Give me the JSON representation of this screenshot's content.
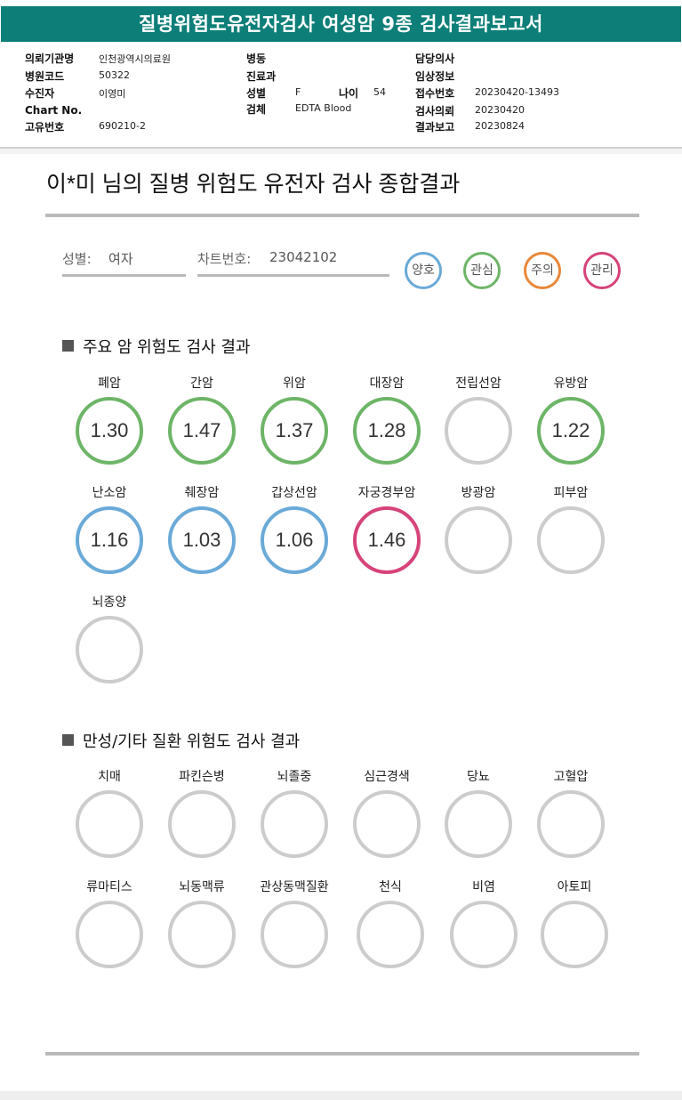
{
  "header": {
    "title": "질병위험도유전자검사 여성암 9종 검사결과보고서"
  },
  "info": {
    "institution_label": "의뢰기관명",
    "institution_value": "인천광역시의료원",
    "hospital_code_label": "병원코드",
    "hospital_code_value": "50322",
    "patient_label": "수진자",
    "patient_value": "이영미",
    "chart_no_label": "Chart No.",
    "unique_no_label": "고유번호",
    "unique_no_value": "690210-2",
    "ward_label": "병동",
    "department_label": "진료과",
    "sex_label": "성별",
    "sex_value": "F",
    "age_label": "나이",
    "age_value": "54",
    "specimen_label": "검체",
    "specimen_value": "EDTA Blood",
    "doctor_label": "담당의사",
    "clinical_label": "임상정보",
    "receipt_label": "접수번호",
    "receipt_value": "20230420-13493",
    "request_label": "검사의뢰",
    "request_value": "20230420",
    "report_label": "결과보고",
    "report_value": "20230824"
  },
  "report": {
    "title": "이*미 님의 질병 위험도 유전자 검사 종합결과",
    "sex_label": "성별:",
    "sex_value": "여자",
    "chart_label": "차트번호:",
    "chart_value": "23042102"
  },
  "legend": [
    {
      "label": "양호",
      "color": "#6aaad8"
    },
    {
      "label": "관심",
      "color": "#6db567"
    },
    {
      "label": "주의",
      "color": "#e8883a"
    },
    {
      "label": "관리",
      "color": "#d6437a"
    }
  ],
  "colors": {
    "empty": "#cccccc"
  },
  "cancer_section": {
    "title": "주요 암 위험도 검사 결과",
    "items": [
      {
        "label": "폐암",
        "value": "1.30",
        "level": 1
      },
      {
        "label": "간암",
        "value": "1.47",
        "level": 1
      },
      {
        "label": "위암",
        "value": "1.37",
        "level": 1
      },
      {
        "label": "대장암",
        "value": "1.28",
        "level": 1
      },
      {
        "label": "전립선암",
        "value": "",
        "level": -1
      },
      {
        "label": "유방암",
        "value": "1.22",
        "level": 1
      },
      {
        "label": "난소암",
        "value": "1.16",
        "level": 0
      },
      {
        "label": "췌장암",
        "value": "1.03",
        "level": 0
      },
      {
        "label": "갑상선암",
        "value": "1.06",
        "level": 0
      },
      {
        "label": "자궁경부암",
        "value": "1.46",
        "level": 3
      },
      {
        "label": "방광암",
        "value": "",
        "level": -1
      },
      {
        "label": "피부암",
        "value": "",
        "level": -1
      },
      {
        "label": "뇌종양",
        "value": "",
        "level": -1
      }
    ]
  },
  "chronic_section": {
    "title": "만성/기타 질환 위험도 검사 결과",
    "items": [
      {
        "label": "치매",
        "value": "",
        "level": -1
      },
      {
        "label": "파킨슨병",
        "value": "",
        "level": -1
      },
      {
        "label": "뇌졸중",
        "value": "",
        "level": -1
      },
      {
        "label": "심근경색",
        "value": "",
        "level": -1
      },
      {
        "label": "당뇨",
        "value": "",
        "level": -1
      },
      {
        "label": "고혈압",
        "value": "",
        "level": -1
      },
      {
        "label": "류마티스",
        "value": "",
        "level": -1
      },
      {
        "label": "뇌동맥류",
        "value": "",
        "level": -1
      },
      {
        "label": "관상동맥질환",
        "value": "",
        "level": -1
      },
      {
        "label": "천식",
        "value": "",
        "level": -1
      },
      {
        "label": "비염",
        "value": "",
        "level": -1
      },
      {
        "label": "아토피",
        "value": "",
        "level": -1
      }
    ]
  }
}
